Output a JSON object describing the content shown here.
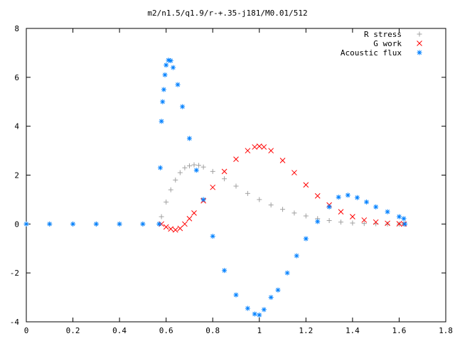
{
  "chart_data": {
    "type": "scatter",
    "title": "m2/n1.5/q1.9/r-+.35-j181/M0.01/512",
    "xlabel": "",
    "ylabel": "",
    "xlim": [
      0,
      1.8
    ],
    "ylim": [
      -4,
      8
    ],
    "x_ticks": [
      "0",
      "0.2",
      "0.4",
      "0.6",
      "0.8",
      "1",
      "1.2",
      "1.4",
      "1.6",
      "1.8"
    ],
    "y_ticks": [
      "-4",
      "-2",
      "0",
      "2",
      "4",
      "6",
      "8"
    ],
    "grid": false,
    "legend_position": "top-right",
    "series": [
      {
        "name": "R stress",
        "marker": "+",
        "color": "#a0a0a0",
        "points": [
          [
            0.0,
            0
          ],
          [
            0.1,
            0
          ],
          [
            0.2,
            0
          ],
          [
            0.3,
            0
          ],
          [
            0.4,
            0
          ],
          [
            0.5,
            0
          ],
          [
            0.57,
            0
          ],
          [
            0.58,
            0.3
          ],
          [
            0.6,
            0.9
          ],
          [
            0.62,
            1.4
          ],
          [
            0.64,
            1.8
          ],
          [
            0.66,
            2.1
          ],
          [
            0.68,
            2.3
          ],
          [
            0.7,
            2.38
          ],
          [
            0.72,
            2.42
          ],
          [
            0.74,
            2.4
          ],
          [
            0.76,
            2.33
          ],
          [
            0.8,
            2.15
          ],
          [
            0.85,
            1.85
          ],
          [
            0.9,
            1.55
          ],
          [
            0.95,
            1.25
          ],
          [
            1.0,
            1.0
          ],
          [
            1.05,
            0.78
          ],
          [
            1.1,
            0.6
          ],
          [
            1.15,
            0.45
          ],
          [
            1.2,
            0.33
          ],
          [
            1.25,
            0.22
          ],
          [
            1.3,
            0.14
          ],
          [
            1.35,
            0.08
          ],
          [
            1.4,
            0.04
          ],
          [
            1.45,
            0.02
          ],
          [
            1.5,
            0.01
          ],
          [
            1.55,
            0.0
          ],
          [
            1.6,
            0.0
          ],
          [
            1.62,
            0.0
          ]
        ]
      },
      {
        "name": "G work",
        "marker": "x",
        "color": "#ff0000",
        "points": [
          [
            0.58,
            0
          ],
          [
            0.6,
            -0.12
          ],
          [
            0.62,
            -0.2
          ],
          [
            0.64,
            -0.24
          ],
          [
            0.66,
            -0.18
          ],
          [
            0.68,
            0.0
          ],
          [
            0.7,
            0.22
          ],
          [
            0.72,
            0.45
          ],
          [
            0.76,
            0.95
          ],
          [
            0.8,
            1.5
          ],
          [
            0.85,
            2.15
          ],
          [
            0.9,
            2.65
          ],
          [
            0.95,
            3.0
          ],
          [
            0.98,
            3.15
          ],
          [
            1.0,
            3.18
          ],
          [
            1.02,
            3.15
          ],
          [
            1.05,
            3.0
          ],
          [
            1.1,
            2.6
          ],
          [
            1.15,
            2.1
          ],
          [
            1.2,
            1.6
          ],
          [
            1.25,
            1.15
          ],
          [
            1.3,
            0.78
          ],
          [
            1.35,
            0.5
          ],
          [
            1.4,
            0.3
          ],
          [
            1.45,
            0.16
          ],
          [
            1.5,
            0.08
          ],
          [
            1.55,
            0.03
          ],
          [
            1.6,
            0.01
          ],
          [
            1.62,
            0.0
          ]
        ]
      },
      {
        "name": "Acoustic flux",
        "marker": "*",
        "color": "#0080ff",
        "points": [
          [
            0.0,
            0
          ],
          [
            0.1,
            0
          ],
          [
            0.2,
            0
          ],
          [
            0.3,
            0
          ],
          [
            0.4,
            0
          ],
          [
            0.5,
            0
          ],
          [
            0.57,
            0
          ],
          [
            0.575,
            2.3
          ],
          [
            0.58,
            4.2
          ],
          [
            0.585,
            5.0
          ],
          [
            0.59,
            5.5
          ],
          [
            0.595,
            6.1
          ],
          [
            0.6,
            6.5
          ],
          [
            0.61,
            6.7
          ],
          [
            0.62,
            6.68
          ],
          [
            0.63,
            6.4
          ],
          [
            0.65,
            5.7
          ],
          [
            0.67,
            4.8
          ],
          [
            0.7,
            3.5
          ],
          [
            0.73,
            2.2
          ],
          [
            0.76,
            1.0
          ],
          [
            0.8,
            -0.5
          ],
          [
            0.85,
            -1.9
          ],
          [
            0.9,
            -2.9
          ],
          [
            0.95,
            -3.45
          ],
          [
            0.98,
            -3.68
          ],
          [
            1.0,
            -3.72
          ],
          [
            1.02,
            -3.5
          ],
          [
            1.05,
            -3.0
          ],
          [
            1.08,
            -2.7
          ],
          [
            1.12,
            -2.0
          ],
          [
            1.16,
            -1.3
          ],
          [
            1.2,
            -0.6
          ],
          [
            1.25,
            0.1
          ],
          [
            1.3,
            0.7
          ],
          [
            1.34,
            1.1
          ],
          [
            1.38,
            1.18
          ],
          [
            1.42,
            1.08
          ],
          [
            1.46,
            0.9
          ],
          [
            1.5,
            0.7
          ],
          [
            1.55,
            0.5
          ],
          [
            1.6,
            0.3
          ],
          [
            1.62,
            0.22
          ],
          [
            1.625,
            0.0
          ]
        ]
      }
    ]
  }
}
